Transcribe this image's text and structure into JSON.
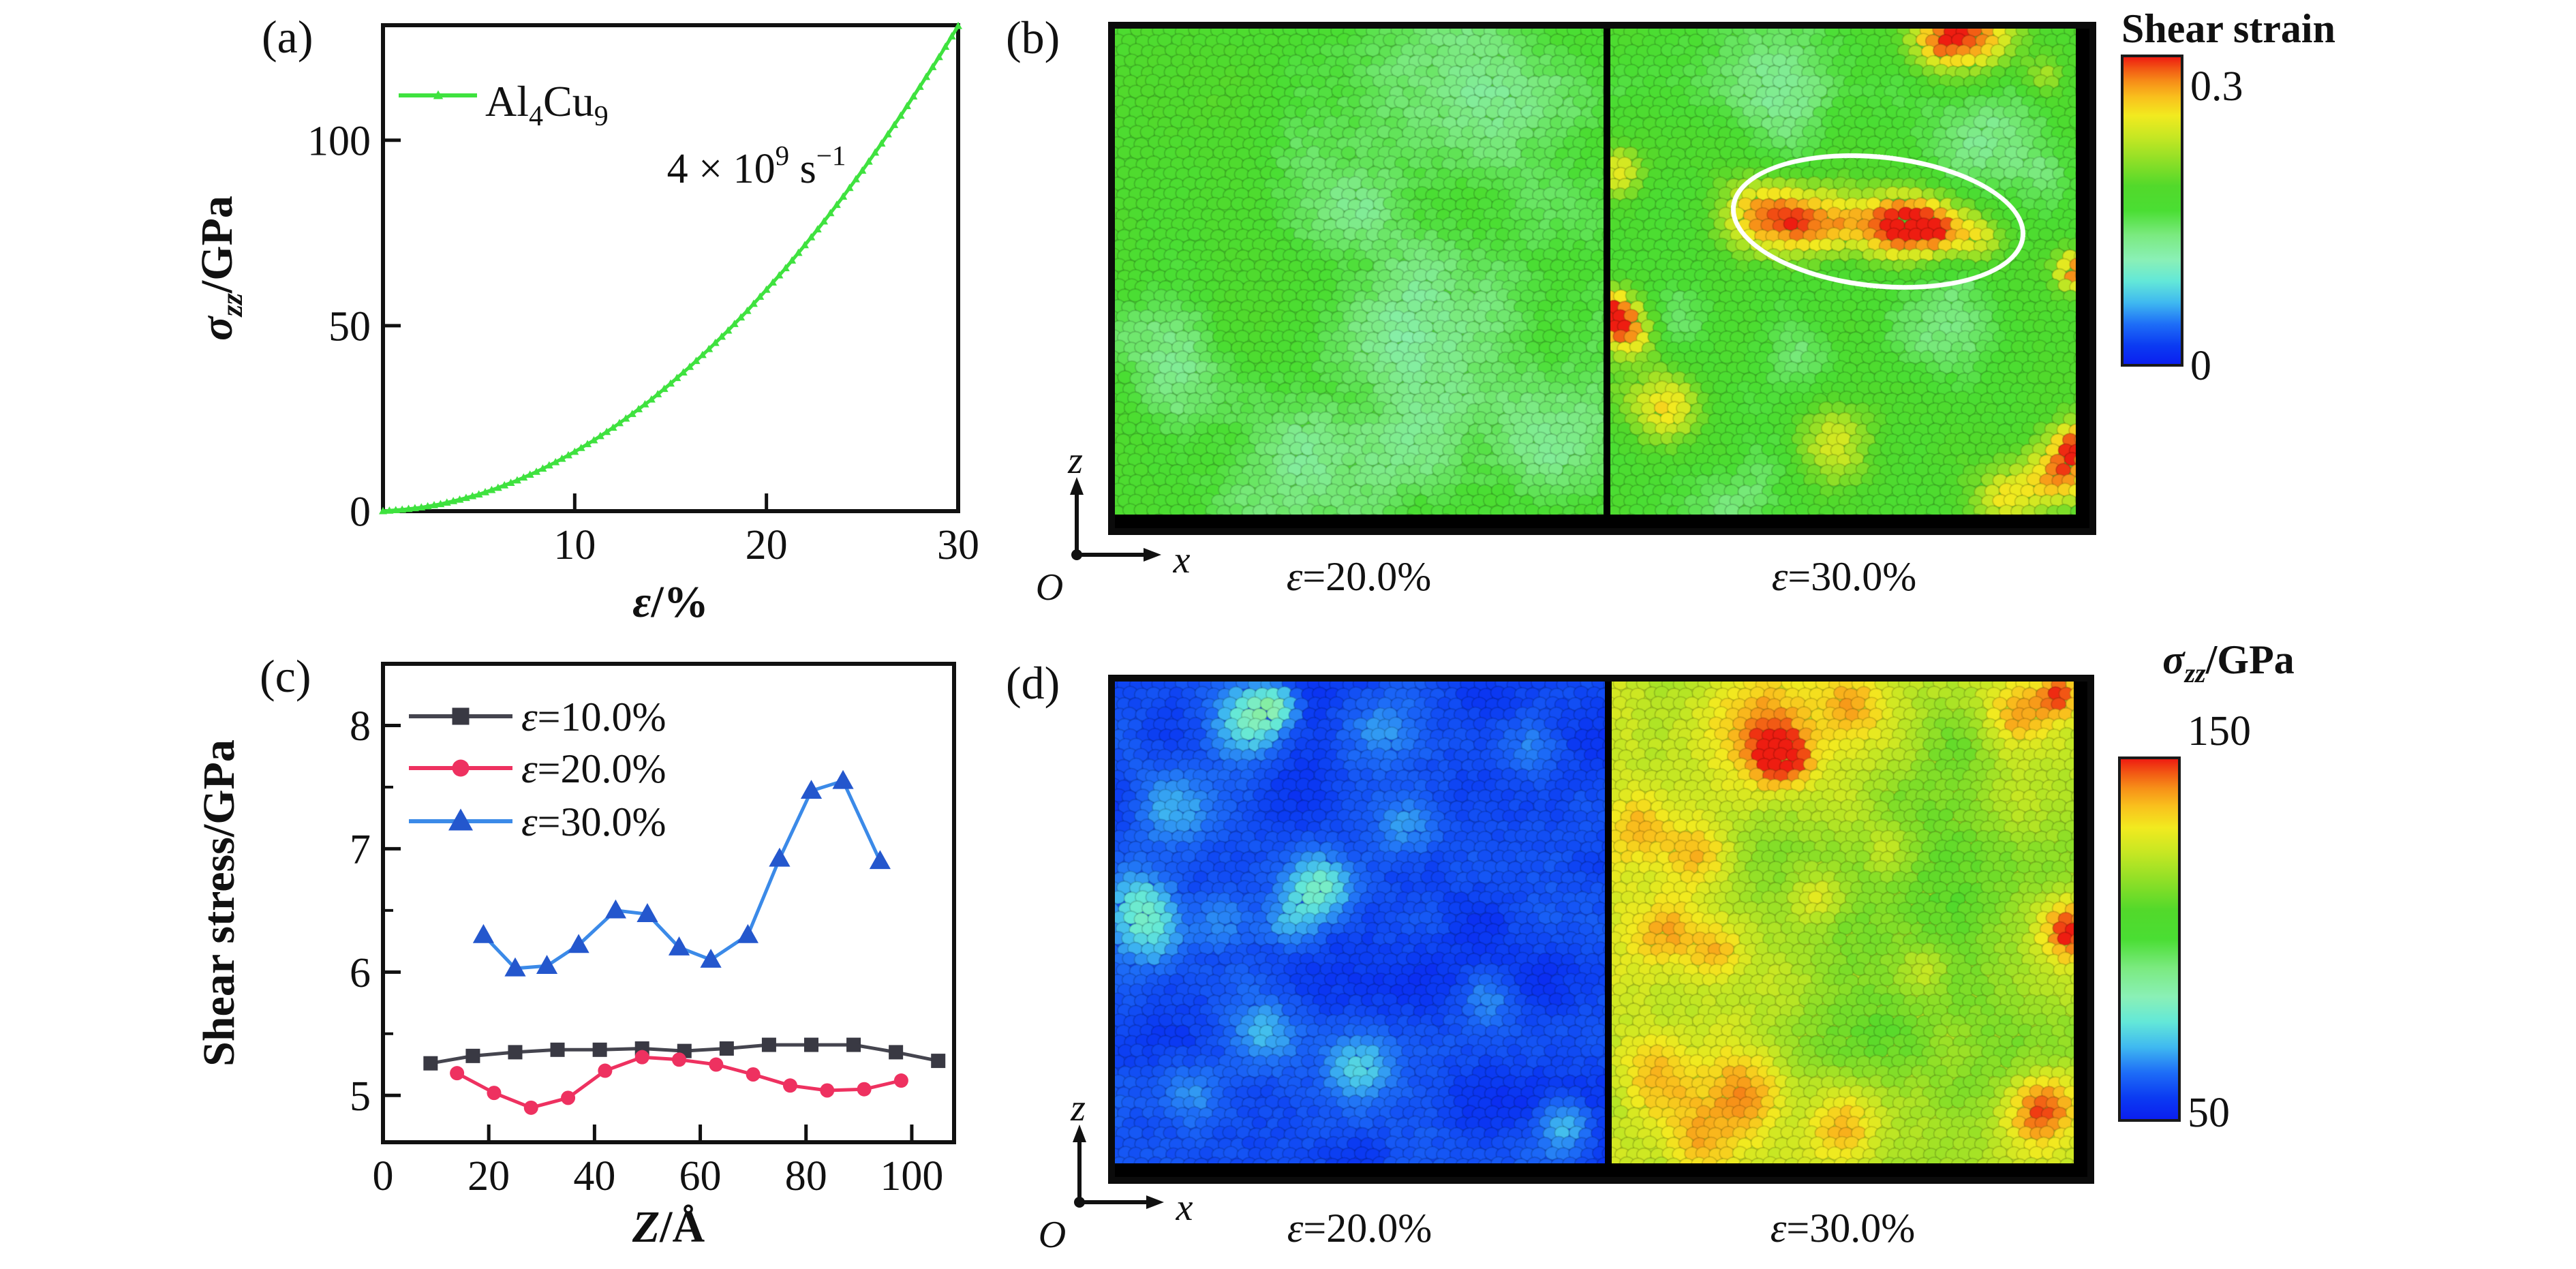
{
  "colormap": [
    [
      0.0,
      "#0b1ff0"
    ],
    [
      0.06,
      "#0b3bf2"
    ],
    [
      0.13,
      "#1e6ef7"
    ],
    [
      0.2,
      "#3fb9f0"
    ],
    [
      0.27,
      "#63e8d8"
    ],
    [
      0.34,
      "#8af0b6"
    ],
    [
      0.42,
      "#7bea80"
    ],
    [
      0.5,
      "#4ade33"
    ],
    [
      0.58,
      "#52d92b"
    ],
    [
      0.66,
      "#8ddf27"
    ],
    [
      0.74,
      "#c6e723"
    ],
    [
      0.81,
      "#f2ea1f"
    ],
    [
      0.87,
      "#f9c01d"
    ],
    [
      0.92,
      "#f78f18"
    ],
    [
      0.96,
      "#f25b14"
    ],
    [
      1.0,
      "#ee1d11"
    ]
  ],
  "panels": {
    "a": {
      "tag": "(a)"
    },
    "b": {
      "tag": "(b)",
      "colorbar": {
        "title": "Shear strain",
        "tick_max": "0.3",
        "tick_min": "0"
      },
      "axis_triad": {
        "z": "z",
        "x": "x",
        "origin": "O"
      },
      "images": [
        {
          "label_sym": "ε",
          "label_rest": "=20.0%",
          "render": {
            "seed": 11,
            "base": 0.52,
            "noise": 0.05,
            "spots": [
              [
                0.62,
                0.1,
                0.14,
                -0.1
              ],
              [
                0.86,
                0.22,
                0.1,
                -0.08
              ],
              [
                0.48,
                0.4,
                0.1,
                -0.07
              ],
              [
                0.76,
                0.52,
                0.1,
                -0.09
              ],
              [
                0.55,
                0.62,
                0.08,
                -0.07
              ],
              [
                0.14,
                0.68,
                0.09,
                -0.08
              ],
              [
                0.62,
                0.82,
                0.16,
                -0.11
              ],
              [
                0.35,
                0.9,
                0.1,
                -0.08
              ],
              [
                0.9,
                0.85,
                0.08,
                -0.07
              ],
              [
                0.1,
                0.15,
                0.12,
                0.05
              ],
              [
                0.3,
                0.55,
                0.1,
                0.04
              ]
            ]
          }
        },
        {
          "label_sym": "ε",
          "label_rest": "=30.0%",
          "highlighted_shear_band": true,
          "render": {
            "seed": 22,
            "base": 0.54,
            "noise": 0.05,
            "spots": [
              [
                0.3,
                0.385,
                0.055,
                0.3
              ],
              [
                0.4,
                0.4,
                0.055,
                0.34
              ],
              [
                0.5,
                0.4,
                0.05,
                0.3
              ],
              [
                0.61,
                0.405,
                0.05,
                0.46
              ],
              [
                0.7,
                0.41,
                0.045,
                0.44
              ],
              [
                0.79,
                0.43,
                0.04,
                0.26
              ],
              [
                0.78,
                0.01,
                0.06,
                0.42
              ],
              [
                0.7,
                0.03,
                0.04,
                0.25
              ],
              [
                0.93,
                0.1,
                0.03,
                0.18
              ],
              [
                0.02,
                0.3,
                0.035,
                0.25
              ],
              [
                0.0,
                0.59,
                0.04,
                0.5
              ],
              [
                0.05,
                0.63,
                0.04,
                0.28
              ],
              [
                0.12,
                0.78,
                0.055,
                0.3
              ],
              [
                0.48,
                0.86,
                0.06,
                0.28
              ],
              [
                0.97,
                0.92,
                0.05,
                0.38
              ],
              [
                0.85,
                0.97,
                0.05,
                0.28
              ],
              [
                1.0,
                0.85,
                0.03,
                0.3
              ],
              [
                1.0,
                0.5,
                0.03,
                0.4
              ],
              [
                0.37,
                0.12,
                0.1,
                -0.12
              ],
              [
                0.8,
                0.2,
                0.09,
                -0.1
              ],
              [
                0.73,
                0.62,
                0.09,
                -0.11
              ],
              [
                0.42,
                0.67,
                0.06,
                -0.09
              ],
              [
                0.15,
                0.6,
                0.05,
                -0.08
              ],
              [
                0.3,
                0.95,
                0.09,
                -0.08
              ],
              [
                0.95,
                0.3,
                0.05,
                -0.07
              ]
            ]
          }
        }
      ]
    },
    "c": {
      "tag": "(c)"
    },
    "d": {
      "tag": "(d)",
      "colorbar": {
        "title_sym": "σ",
        "title_sub": "zz",
        "title_rest": "/GPa",
        "tick_max": "150",
        "tick_min": "50"
      },
      "axis_triad": {
        "z": "z",
        "x": "x",
        "origin": "O"
      },
      "images": [
        {
          "label_sym": "ε",
          "label_rest": "=20.0%",
          "render": {
            "seed": 33,
            "base": 0.07,
            "noise": 0.035,
            "spots": [
              [
                0.28,
                0.08,
                0.05,
                0.22
              ],
              [
                0.33,
                0.05,
                0.03,
                0.18
              ],
              [
                0.12,
                0.26,
                0.06,
                0.14
              ],
              [
                0.05,
                0.46,
                0.05,
                0.16
              ],
              [
                0.42,
                0.43,
                0.045,
                0.22
              ],
              [
                0.36,
                0.5,
                0.04,
                0.14
              ],
              [
                0.6,
                0.3,
                0.05,
                0.1
              ],
              [
                0.3,
                0.73,
                0.05,
                0.13
              ],
              [
                0.5,
                0.8,
                0.045,
                0.15
              ],
              [
                0.15,
                0.86,
                0.05,
                0.12
              ],
              [
                0.76,
                0.66,
                0.04,
                0.09
              ],
              [
                0.92,
                0.92,
                0.04,
                0.15
              ],
              [
                0.85,
                0.14,
                0.04,
                0.08
              ],
              [
                0.55,
                0.1,
                0.05,
                0.08
              ],
              [
                0.22,
                0.5,
                0.04,
                0.1
              ],
              [
                0.08,
                0.52,
                0.05,
                0.16
              ]
            ]
          }
        },
        {
          "label_sym": "ε",
          "label_rest": "=30.0%",
          "render": {
            "seed": 44,
            "base": 0.73,
            "noise": 0.045,
            "spots": [
              [
                0.72,
                0.42,
                0.16,
                -0.12
              ],
              [
                0.56,
                0.72,
                0.12,
                -0.09
              ],
              [
                0.84,
                0.78,
                0.1,
                -0.08
              ],
              [
                0.33,
                0.38,
                0.08,
                -0.06
              ],
              [
                0.75,
                0.12,
                0.07,
                -0.05
              ],
              [
                0.3,
                0.1,
                0.08,
                0.2
              ],
              [
                0.37,
                0.16,
                0.04,
                0.28
              ],
              [
                0.52,
                0.05,
                0.05,
                0.16
              ],
              [
                0.88,
                0.07,
                0.05,
                0.2
              ],
              [
                0.97,
                0.03,
                0.03,
                0.24
              ],
              [
                0.06,
                0.3,
                0.05,
                0.14
              ],
              [
                0.18,
                0.36,
                0.05,
                0.16
              ],
              [
                0.12,
                0.52,
                0.05,
                0.18
              ],
              [
                0.23,
                0.56,
                0.04,
                0.14
              ],
              [
                0.45,
                0.45,
                0.04,
                0.12
              ],
              [
                0.99,
                0.52,
                0.04,
                0.28
              ],
              [
                0.1,
                0.8,
                0.06,
                0.16
              ],
              [
                0.3,
                0.86,
                0.06,
                0.18
              ],
              [
                0.18,
                0.96,
                0.05,
                0.14
              ],
              [
                0.5,
                0.93,
                0.05,
                0.16
              ],
              [
                0.93,
                0.89,
                0.05,
                0.26
              ],
              [
                0.6,
                0.35,
                0.04,
                0.1
              ],
              [
                0.68,
                0.6,
                0.035,
                0.1
              ]
            ]
          }
        }
      ]
    }
  },
  "chart_data": [
    {
      "panel": "a",
      "type": "line",
      "title": "",
      "xlabel_sym": "ε",
      "xlabel_rest": "/%",
      "ylabel_sym": "σ",
      "ylabel_sub": "zz",
      "ylabel_rest": "/GPa",
      "xlim": [
        0,
        30
      ],
      "ylim": [
        0,
        131
      ],
      "xticks": [
        10,
        20,
        30
      ],
      "yticks": [
        0,
        50,
        100
      ],
      "grid": false,
      "legend_position": "top-left inside",
      "annotation": {
        "base": "4 × 10",
        "sup": "9",
        "unit": " s",
        "sup2": "−1"
      },
      "legend": {
        "main1": "Al",
        "sub1": "4",
        "main2": "Cu",
        "sub2": "9"
      },
      "series": [
        {
          "name": "Al4Cu9",
          "line_color": "#3fe23f",
          "marker": "triangle",
          "marker_color": "#3fe23f",
          "x": [
            0,
            1,
            2,
            3,
            4,
            5,
            6,
            7,
            8,
            9,
            10,
            11,
            12,
            13,
            14,
            15,
            16,
            17,
            18,
            19,
            20,
            21,
            22,
            23,
            24,
            25,
            26,
            27,
            28,
            29,
            30
          ],
          "y": [
            0,
            0.4,
            1.0,
            1.9,
            3.1,
            4.5,
            6.3,
            8.3,
            10.6,
            13.2,
            16.0,
            19.1,
            22.5,
            26.2,
            30.1,
            34.4,
            38.9,
            43.7,
            48.7,
            54.0,
            59.7,
            65.5,
            71.7,
            78.1,
            84.8,
            91.8,
            99.1,
            106.6,
            114.4,
            122.4,
            130.8
          ]
        }
      ]
    },
    {
      "panel": "c",
      "type": "line",
      "title": "",
      "xlabel_sym": "Z",
      "xlabel_rest": "/Å",
      "ylabel": "Shear stress/GPa",
      "xlim": [
        0,
        108
      ],
      "ylim": [
        4.62,
        8.5
      ],
      "xticks": [
        0,
        20,
        40,
        60,
        80,
        100
      ],
      "yticks": [
        5,
        6,
        7,
        8
      ],
      "yminor": [
        5.5,
        6.5,
        7.5
      ],
      "grid": false,
      "legend_position": "top-left inside",
      "series": [
        {
          "name_sym": "ε",
          "name_rest": "=10.0%",
          "line_color": "#45454f",
          "marker": "square",
          "marker_color": "#393943",
          "x": [
            9,
            17,
            25,
            33,
            41,
            49,
            57,
            65,
            73,
            81,
            89,
            97,
            105
          ],
          "y": [
            5.26,
            5.32,
            5.35,
            5.37,
            5.37,
            5.38,
            5.36,
            5.38,
            5.41,
            5.41,
            5.41,
            5.35,
            5.28
          ]
        },
        {
          "name_sym": "ε",
          "name_rest": "=20.0%",
          "line_color": "#ee3160",
          "marker": "circle",
          "marker_color": "#ee3160",
          "x": [
            14,
            21,
            28,
            35,
            42,
            49,
            56,
            63,
            70,
            77,
            84,
            91,
            98
          ],
          "y": [
            5.18,
            5.02,
            4.9,
            4.98,
            5.2,
            5.31,
            5.29,
            5.25,
            5.17,
            5.08,
            5.04,
            5.05,
            5.12
          ]
        },
        {
          "name_sym": "ε",
          "name_rest": "=30.0%",
          "line_color": "#3b8ae8",
          "marker": "triangle",
          "marker_color": "#2457cd",
          "x": [
            19,
            25,
            31,
            37,
            44,
            50,
            56,
            62,
            69,
            75,
            81,
            87,
            94
          ],
          "y": [
            6.3,
            6.03,
            6.05,
            6.22,
            6.5,
            6.47,
            6.2,
            6.1,
            6.3,
            6.92,
            7.47,
            7.55,
            6.9
          ]
        }
      ]
    }
  ]
}
